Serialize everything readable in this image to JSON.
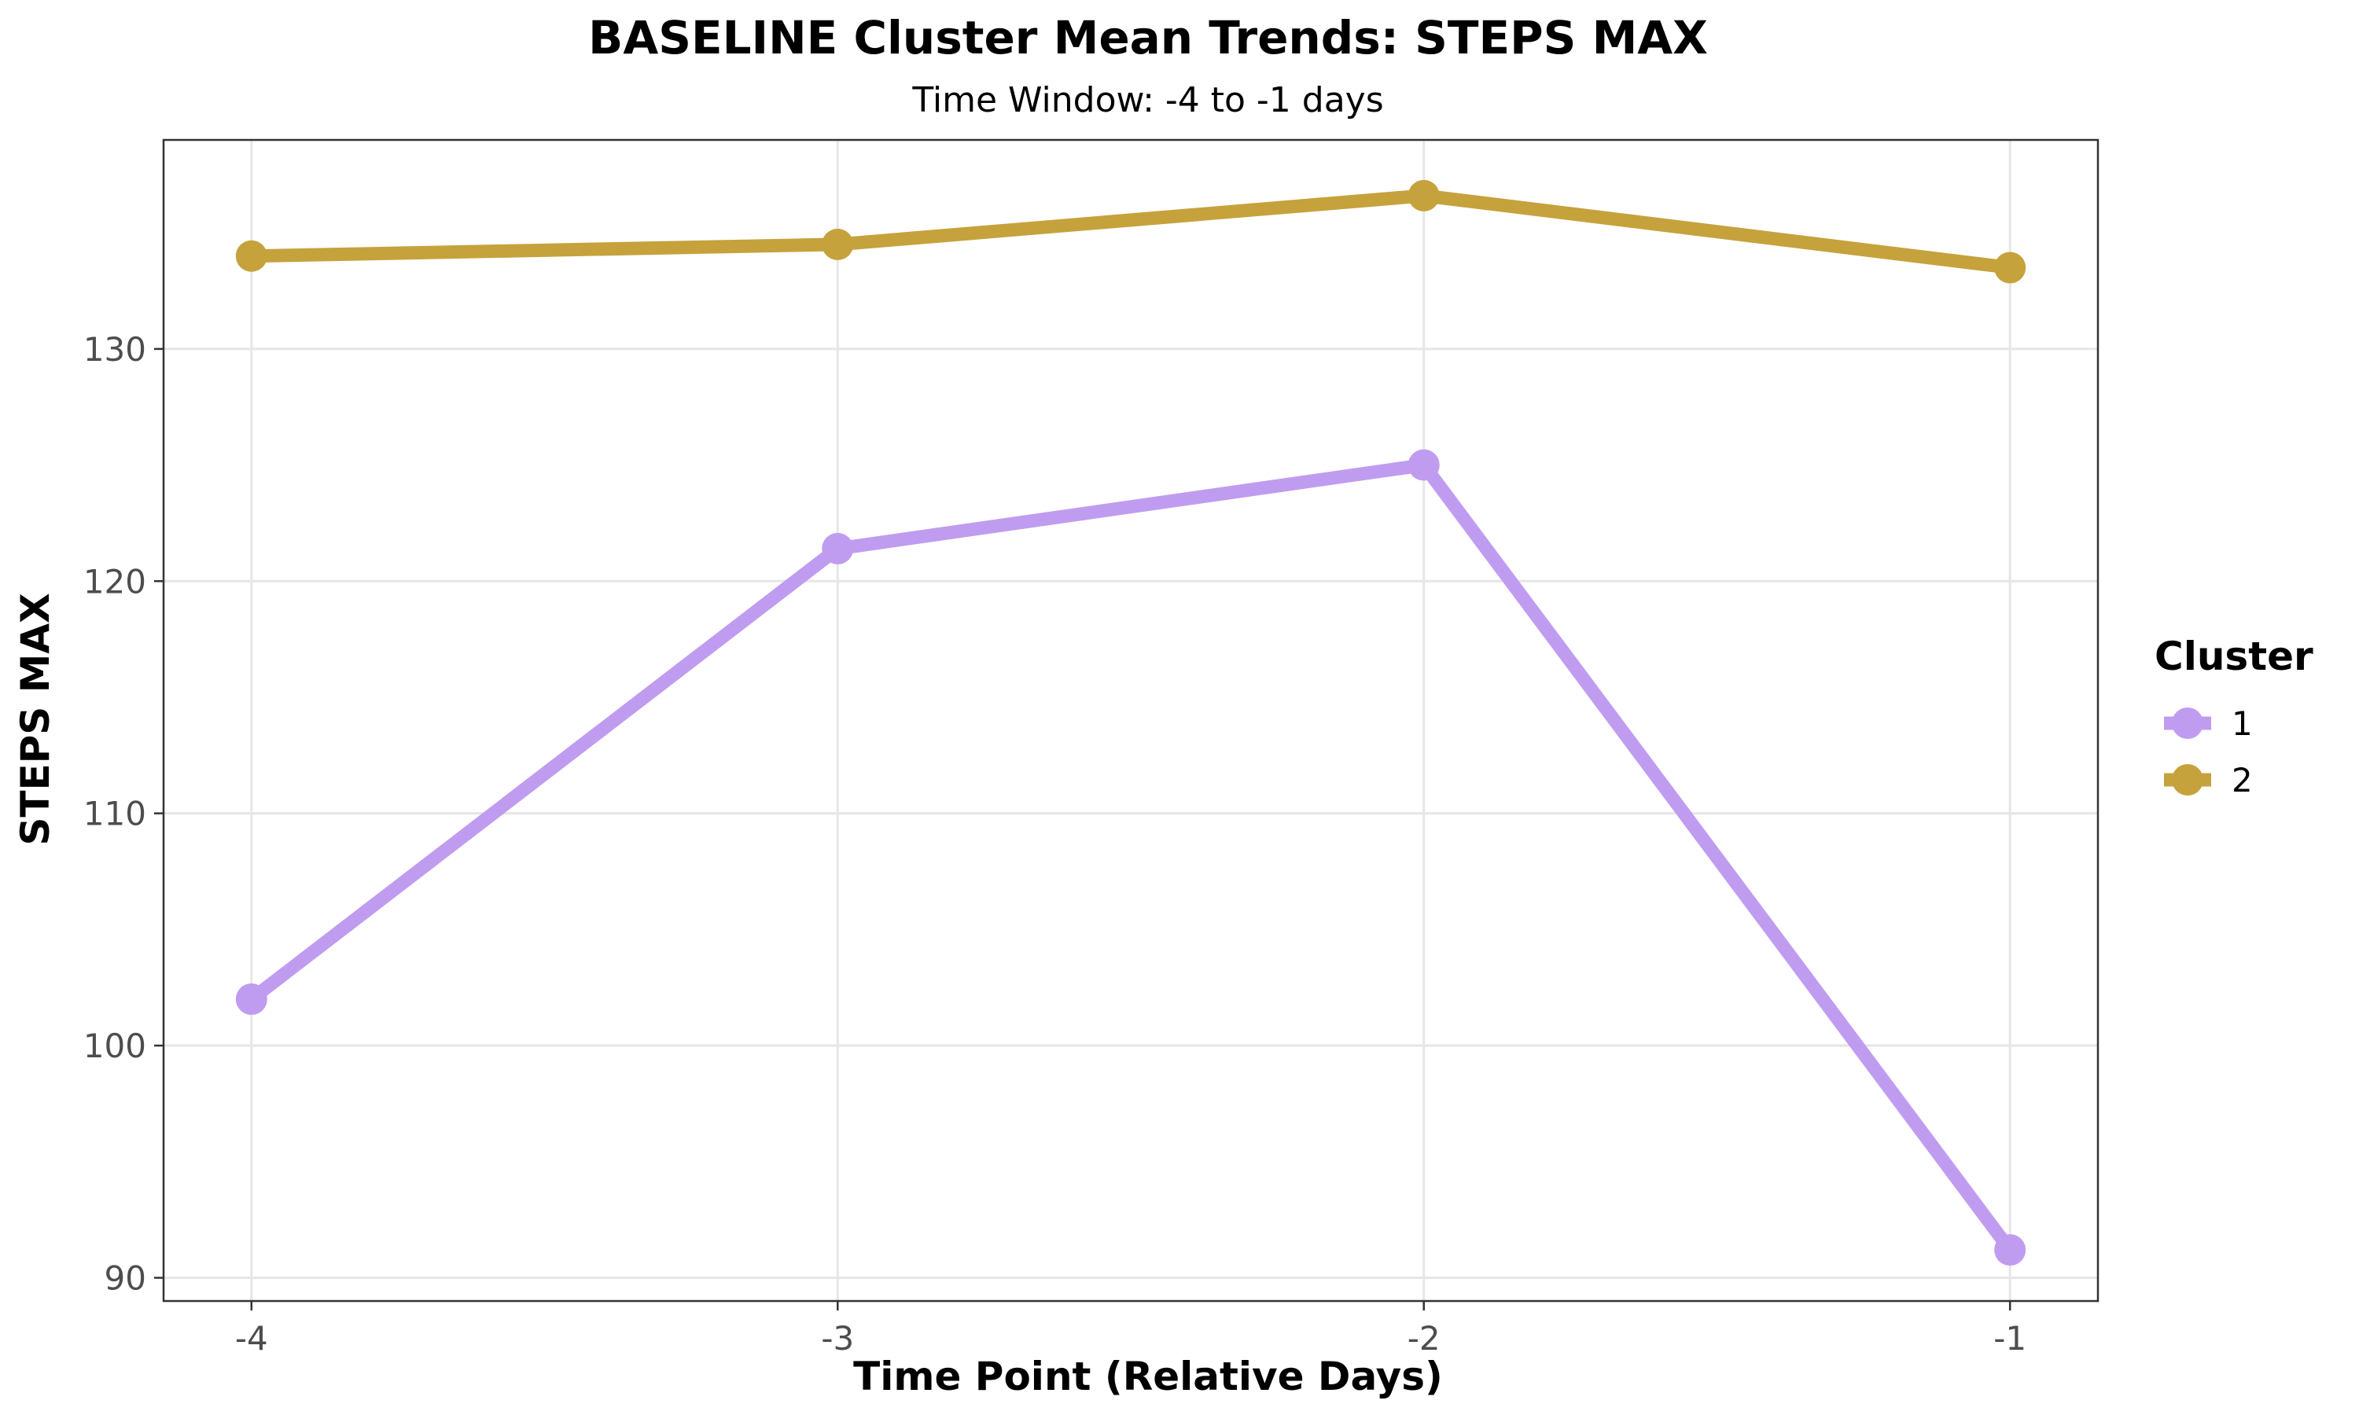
{
  "chart_data": {
    "type": "line",
    "title": "BASELINE Cluster Mean Trends: STEPS MAX",
    "subtitle": "Time Window: -4 to -1 days",
    "xlabel": "Time Point (Relative Days)",
    "ylabel": "STEPS MAX",
    "x": [
      -4,
      -3,
      -2,
      -1
    ],
    "x_tick_labels": [
      "-4",
      "-3",
      "-2",
      "-1"
    ],
    "xlim": [
      -4.15,
      -0.85
    ],
    "ylim": [
      89,
      139
    ],
    "y_ticks": [
      90,
      100,
      110,
      120,
      130
    ],
    "y_tick_labels": [
      "90",
      "100",
      "110",
      "120",
      "130"
    ],
    "grid": true,
    "legend": {
      "title": "Cluster",
      "position": "right"
    },
    "series": [
      {
        "name": "1",
        "color": "#C09CF0",
        "values": [
          102.0,
          121.4,
          125.0,
          91.2
        ]
      },
      {
        "name": "2",
        "color": "#C6A23C",
        "values": [
          134.0,
          134.5,
          136.6,
          133.5
        ]
      }
    ]
  }
}
